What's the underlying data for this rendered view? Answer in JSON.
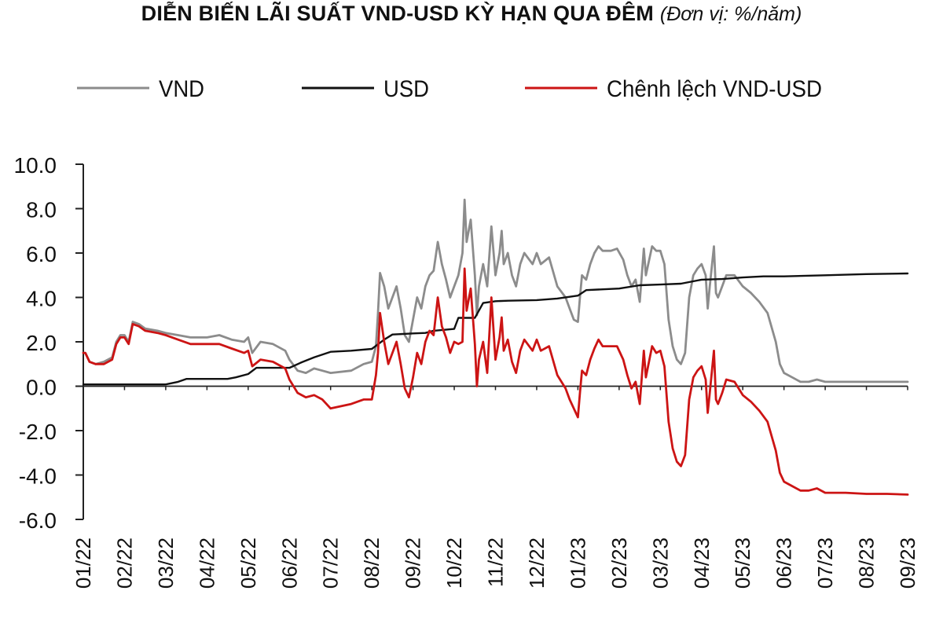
{
  "title": "DIỄN BIẾN LÃI SUẤT VND-USD KỲ HẠN QUA ĐÊM",
  "unit": "(Đơn vị: %/năm)",
  "chart_data": {
    "type": "line",
    "title": "DIỄN BIẾN LÃI SUẤT VND-USD KỲ HẠN QUA ĐÊM",
    "unit": "(Đơn vị: %/năm)",
    "xlabel": "",
    "ylabel": "",
    "ylim": [
      -6.0,
      10.0
    ],
    "yticks": [
      "10.0",
      "8.0",
      "6.0",
      "4.0",
      "2.0",
      "0.0",
      "-2.0",
      "-4.0",
      "-6.0"
    ],
    "categories": [
      "01/22",
      "02/22",
      "03/22",
      "04/22",
      "05/22",
      "06/22",
      "07/22",
      "08/22",
      "09/22",
      "10/22",
      "11/22",
      "12/22",
      "01/23",
      "02/23",
      "03/23",
      "04/23",
      "05/23",
      "06/23",
      "07/23",
      "08/23",
      "09/23"
    ],
    "legend_position": "top",
    "grid": false,
    "series": [
      {
        "name": "VND",
        "color": "#8c8c8c",
        "points": [
          [
            0.0,
            1.5
          ],
          [
            0.05,
            1.5
          ],
          [
            0.15,
            1.1
          ],
          [
            0.3,
            1.0
          ],
          [
            0.5,
            1.1
          ],
          [
            0.7,
            1.3
          ],
          [
            0.8,
            2.0
          ],
          [
            0.9,
            2.3
          ],
          [
            1.0,
            2.3
          ],
          [
            1.1,
            2.0
          ],
          [
            1.2,
            2.9
          ],
          [
            1.35,
            2.8
          ],
          [
            1.5,
            2.6
          ],
          [
            1.8,
            2.5
          ],
          [
            2.0,
            2.4
          ],
          [
            2.3,
            2.3
          ],
          [
            2.6,
            2.2
          ],
          [
            3.0,
            2.2
          ],
          [
            3.3,
            2.3
          ],
          [
            3.6,
            2.1
          ],
          [
            3.9,
            2.0
          ],
          [
            4.0,
            2.2
          ],
          [
            4.1,
            1.5
          ],
          [
            4.3,
            2.0
          ],
          [
            4.6,
            1.9
          ],
          [
            4.9,
            1.6
          ],
          [
            5.0,
            1.2
          ],
          [
            5.2,
            0.7
          ],
          [
            5.4,
            0.6
          ],
          [
            5.6,
            0.8
          ],
          [
            5.8,
            0.7
          ],
          [
            6.0,
            0.6
          ],
          [
            6.5,
            0.7
          ],
          [
            6.8,
            1.0
          ],
          [
            7.0,
            1.1
          ],
          [
            7.1,
            1.8
          ],
          [
            7.15,
            3.3
          ],
          [
            7.2,
            5.1
          ],
          [
            7.3,
            4.5
          ],
          [
            7.4,
            3.5
          ],
          [
            7.6,
            4.5
          ],
          [
            7.7,
            3.5
          ],
          [
            7.8,
            2.3
          ],
          [
            7.9,
            2.0
          ],
          [
            8.0,
            3.0
          ],
          [
            8.1,
            4.0
          ],
          [
            8.2,
            3.5
          ],
          [
            8.3,
            4.5
          ],
          [
            8.4,
            5.0
          ],
          [
            8.5,
            5.2
          ],
          [
            8.6,
            6.5
          ],
          [
            8.7,
            5.5
          ],
          [
            8.8,
            4.8
          ],
          [
            8.9,
            4.0
          ],
          [
            9.0,
            4.5
          ],
          [
            9.1,
            5.0
          ],
          [
            9.2,
            6.0
          ],
          [
            9.25,
            8.4
          ],
          [
            9.3,
            6.5
          ],
          [
            9.4,
            7.5
          ],
          [
            9.5,
            5.0
          ],
          [
            9.55,
            3.2
          ],
          [
            9.6,
            4.5
          ],
          [
            9.7,
            5.5
          ],
          [
            9.8,
            4.5
          ],
          [
            9.9,
            7.2
          ],
          [
            10.0,
            5.0
          ],
          [
            10.1,
            6.0
          ],
          [
            10.15,
            7.0
          ],
          [
            10.2,
            5.5
          ],
          [
            10.3,
            6.0
          ],
          [
            10.4,
            5.0
          ],
          [
            10.5,
            4.5
          ],
          [
            10.6,
            5.5
          ],
          [
            10.7,
            6.0
          ],
          [
            10.9,
            5.5
          ],
          [
            11.0,
            6.0
          ],
          [
            11.1,
            5.5
          ],
          [
            11.3,
            5.8
          ],
          [
            11.5,
            4.5
          ],
          [
            11.7,
            4.0
          ],
          [
            11.8,
            3.5
          ],
          [
            11.9,
            3.0
          ],
          [
            12.0,
            2.9
          ],
          [
            12.05,
            4.0
          ],
          [
            12.1,
            5.0
          ],
          [
            12.2,
            4.8
          ],
          [
            12.3,
            5.5
          ],
          [
            12.4,
            6.0
          ],
          [
            12.5,
            6.3
          ],
          [
            12.6,
            6.1
          ],
          [
            12.8,
            6.1
          ],
          [
            12.95,
            6.2
          ],
          [
            13.1,
            5.7
          ],
          [
            13.2,
            5.0
          ],
          [
            13.3,
            4.5
          ],
          [
            13.4,
            4.8
          ],
          [
            13.5,
            3.8
          ],
          [
            13.6,
            6.2
          ],
          [
            13.65,
            5.0
          ],
          [
            13.8,
            6.3
          ],
          [
            13.9,
            6.1
          ],
          [
            14.0,
            6.1
          ],
          [
            14.1,
            5.5
          ],
          [
            14.2,
            3.0
          ],
          [
            14.3,
            1.8
          ],
          [
            14.4,
            1.2
          ],
          [
            14.5,
            1.0
          ],
          [
            14.6,
            1.5
          ],
          [
            14.7,
            4.0
          ],
          [
            14.8,
            5.0
          ],
          [
            14.9,
            5.3
          ],
          [
            15.0,
            5.5
          ],
          [
            15.1,
            5.0
          ],
          [
            15.15,
            3.5
          ],
          [
            15.2,
            4.5
          ],
          [
            15.3,
            6.3
          ],
          [
            15.35,
            4.2
          ],
          [
            15.4,
            4.0
          ],
          [
            15.5,
            4.5
          ],
          [
            15.6,
            5.0
          ],
          [
            15.8,
            5.0
          ],
          [
            16.0,
            4.5
          ],
          [
            16.2,
            4.2
          ],
          [
            16.4,
            3.8
          ],
          [
            16.6,
            3.3
          ],
          [
            16.8,
            2.0
          ],
          [
            16.9,
            1.0
          ],
          [
            17.0,
            0.6
          ],
          [
            17.2,
            0.4
          ],
          [
            17.4,
            0.2
          ],
          [
            17.6,
            0.2
          ],
          [
            17.8,
            0.3
          ],
          [
            18.0,
            0.2
          ],
          [
            18.5,
            0.2
          ],
          [
            19.0,
            0.2
          ],
          [
            19.5,
            0.2
          ],
          [
            20.0,
            0.2
          ]
        ]
      },
      {
        "name": "USD",
        "color": "#111111",
        "points": [
          [
            0.0,
            0.08
          ],
          [
            1.0,
            0.08
          ],
          [
            2.0,
            0.08
          ],
          [
            2.3,
            0.2
          ],
          [
            2.5,
            0.33
          ],
          [
            3.5,
            0.33
          ],
          [
            3.7,
            0.4
          ],
          [
            4.0,
            0.55
          ],
          [
            4.2,
            0.83
          ],
          [
            5.0,
            0.83
          ],
          [
            5.3,
            1.08
          ],
          [
            5.6,
            1.3
          ],
          [
            6.0,
            1.55
          ],
          [
            6.5,
            1.6
          ],
          [
            7.0,
            1.68
          ],
          [
            7.3,
            2.1
          ],
          [
            7.5,
            2.33
          ],
          [
            8.0,
            2.38
          ],
          [
            8.3,
            2.4
          ],
          [
            8.5,
            2.5
          ],
          [
            9.0,
            2.58
          ],
          [
            9.1,
            3.08
          ],
          [
            9.5,
            3.08
          ],
          [
            9.7,
            3.75
          ],
          [
            10.0,
            3.83
          ],
          [
            10.3,
            3.85
          ],
          [
            11.0,
            3.88
          ],
          [
            11.5,
            3.95
          ],
          [
            12.0,
            4.08
          ],
          [
            12.2,
            4.33
          ],
          [
            13.0,
            4.4
          ],
          [
            13.5,
            4.55
          ],
          [
            14.0,
            4.58
          ],
          [
            14.5,
            4.62
          ],
          [
            15.0,
            4.8
          ],
          [
            15.5,
            4.83
          ],
          [
            16.0,
            4.9
          ],
          [
            16.5,
            4.95
          ],
          [
            17.0,
            4.95
          ],
          [
            18.0,
            5.0
          ],
          [
            19.0,
            5.05
          ],
          [
            20.0,
            5.08
          ]
        ]
      },
      {
        "name": "Chênh lệch VND-USD",
        "color": "#cc1414",
        "points": [
          [
            0.0,
            1.5
          ],
          [
            0.05,
            1.5
          ],
          [
            0.15,
            1.1
          ],
          [
            0.3,
            1.0
          ],
          [
            0.5,
            1.0
          ],
          [
            0.7,
            1.2
          ],
          [
            0.8,
            1.9
          ],
          [
            0.9,
            2.2
          ],
          [
            1.0,
            2.2
          ],
          [
            1.1,
            1.9
          ],
          [
            1.2,
            2.8
          ],
          [
            1.35,
            2.7
          ],
          [
            1.5,
            2.5
          ],
          [
            1.8,
            2.4
          ],
          [
            2.0,
            2.3
          ],
          [
            2.3,
            2.1
          ],
          [
            2.6,
            1.9
          ],
          [
            3.0,
            1.9
          ],
          [
            3.3,
            1.9
          ],
          [
            3.6,
            1.7
          ],
          [
            3.9,
            1.5
          ],
          [
            4.0,
            1.6
          ],
          [
            4.1,
            0.9
          ],
          [
            4.3,
            1.2
          ],
          [
            4.6,
            1.1
          ],
          [
            4.9,
            0.8
          ],
          [
            5.0,
            0.3
          ],
          [
            5.2,
            -0.3
          ],
          [
            5.4,
            -0.5
          ],
          [
            5.6,
            -0.4
          ],
          [
            5.8,
            -0.6
          ],
          [
            6.0,
            -1.0
          ],
          [
            6.5,
            -0.8
          ],
          [
            6.8,
            -0.6
          ],
          [
            7.0,
            -0.6
          ],
          [
            7.1,
            0.5
          ],
          [
            7.15,
            1.5
          ],
          [
            7.2,
            3.3
          ],
          [
            7.3,
            2.0
          ],
          [
            7.4,
            1.0
          ],
          [
            7.6,
            2.0
          ],
          [
            7.7,
            1.0
          ],
          [
            7.8,
            -0.1
          ],
          [
            7.9,
            -0.5
          ],
          [
            8.0,
            0.4
          ],
          [
            8.1,
            1.5
          ],
          [
            8.2,
            1.0
          ],
          [
            8.3,
            2.0
          ],
          [
            8.4,
            2.5
          ],
          [
            8.5,
            2.3
          ],
          [
            8.6,
            4.0
          ],
          [
            8.7,
            2.7
          ],
          [
            8.8,
            2.2
          ],
          [
            8.9,
            1.5
          ],
          [
            9.0,
            2.0
          ],
          [
            9.1,
            1.9
          ],
          [
            9.2,
            2.0
          ],
          [
            9.25,
            5.3
          ],
          [
            9.3,
            3.4
          ],
          [
            9.4,
            4.4
          ],
          [
            9.5,
            1.9
          ],
          [
            9.55,
            0.0
          ],
          [
            9.6,
            1.2
          ],
          [
            9.7,
            2.0
          ],
          [
            9.8,
            0.6
          ],
          [
            9.9,
            4.0
          ],
          [
            10.0,
            1.2
          ],
          [
            10.1,
            2.2
          ],
          [
            10.15,
            3.1
          ],
          [
            10.2,
            1.6
          ],
          [
            10.3,
            2.1
          ],
          [
            10.4,
            1.1
          ],
          [
            10.5,
            0.6
          ],
          [
            10.6,
            1.6
          ],
          [
            10.7,
            2.1
          ],
          [
            10.9,
            1.6
          ],
          [
            11.0,
            2.1
          ],
          [
            11.1,
            1.6
          ],
          [
            11.3,
            1.8
          ],
          [
            11.5,
            0.5
          ],
          [
            11.7,
            -0.1
          ],
          [
            11.8,
            -0.6
          ],
          [
            11.9,
            -1.0
          ],
          [
            12.0,
            -1.4
          ],
          [
            12.05,
            -0.3
          ],
          [
            12.1,
            0.7
          ],
          [
            12.2,
            0.5
          ],
          [
            12.3,
            1.2
          ],
          [
            12.4,
            1.7
          ],
          [
            12.5,
            2.1
          ],
          [
            12.6,
            1.8
          ],
          [
            12.8,
            1.8
          ],
          [
            12.95,
            1.8
          ],
          [
            13.1,
            1.2
          ],
          [
            13.2,
            0.5
          ],
          [
            13.3,
            -0.1
          ],
          [
            13.4,
            0.2
          ],
          [
            13.5,
            -0.8
          ],
          [
            13.6,
            1.6
          ],
          [
            13.65,
            0.4
          ],
          [
            13.8,
            1.8
          ],
          [
            13.9,
            1.5
          ],
          [
            14.0,
            1.6
          ],
          [
            14.1,
            0.9
          ],
          [
            14.2,
            -1.6
          ],
          [
            14.3,
            -2.8
          ],
          [
            14.4,
            -3.4
          ],
          [
            14.5,
            -3.6
          ],
          [
            14.6,
            -3.1
          ],
          [
            14.7,
            -0.6
          ],
          [
            14.8,
            0.4
          ],
          [
            14.9,
            0.7
          ],
          [
            15.0,
            0.9
          ],
          [
            15.1,
            0.3
          ],
          [
            15.15,
            -1.2
          ],
          [
            15.2,
            -0.3
          ],
          [
            15.3,
            1.6
          ],
          [
            15.35,
            -0.6
          ],
          [
            15.4,
            -0.8
          ],
          [
            15.5,
            -0.3
          ],
          [
            15.6,
            0.3
          ],
          [
            15.8,
            0.2
          ],
          [
            16.0,
            -0.4
          ],
          [
            16.2,
            -0.7
          ],
          [
            16.4,
            -1.1
          ],
          [
            16.6,
            -1.6
          ],
          [
            16.8,
            -2.9
          ],
          [
            16.9,
            -3.9
          ],
          [
            17.0,
            -4.3
          ],
          [
            17.2,
            -4.5
          ],
          [
            17.4,
            -4.7
          ],
          [
            17.6,
            -4.7
          ],
          [
            17.8,
            -4.6
          ],
          [
            18.0,
            -4.8
          ],
          [
            18.5,
            -4.8
          ],
          [
            19.0,
            -4.85
          ],
          [
            19.5,
            -4.85
          ],
          [
            20.0,
            -4.88
          ]
        ]
      }
    ]
  }
}
